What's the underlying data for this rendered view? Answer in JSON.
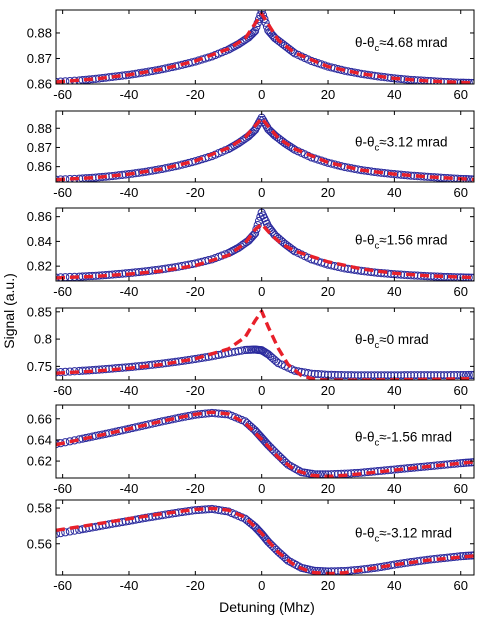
{
  "figure": {
    "xlabel": "Detuning (Mhz)",
    "ylabel": "Signal (a.u.)"
  },
  "colors": {
    "data": "#2b2b9e",
    "fit": "#e8202a",
    "axes": "#000000"
  },
  "chart_data": [
    {
      "type": "scatter",
      "annotation": {
        "prefix": "θ-θ",
        "sub": "c",
        "value": "≈4.68 mrad"
      },
      "xlim": [
        -62,
        64
      ],
      "ylim": [
        0.86,
        0.889
      ],
      "x_ticks": [
        -60,
        -40,
        -20,
        0,
        20,
        40,
        60
      ],
      "y_ticks": [
        0.86,
        0.87,
        0.88
      ],
      "y_tick_labels": [
        "0.86",
        "0.87",
        "0.88"
      ],
      "series": [
        {
          "role": "data",
          "style": "circles",
          "x": [
            -62,
            -55,
            -50,
            -45,
            -40,
            -35,
            -30,
            -25,
            -20,
            -15,
            -10,
            -7,
            -4,
            -2,
            0,
            2,
            4,
            7,
            10,
            15,
            20,
            25,
            30,
            35,
            40,
            45,
            50,
            55,
            60,
            64
          ],
          "y": [
            0.8608,
            0.8614,
            0.862,
            0.8628,
            0.8636,
            0.8646,
            0.8658,
            0.8672,
            0.8688,
            0.8708,
            0.8735,
            0.8756,
            0.8782,
            0.8808,
            0.8885,
            0.881,
            0.878,
            0.875,
            0.872,
            0.869,
            0.8668,
            0.8652,
            0.864,
            0.863,
            0.8622,
            0.8616,
            0.8612,
            0.8608,
            0.8605,
            0.8604
          ]
        },
        {
          "role": "fit",
          "style": "dashed",
          "x": [
            -62,
            -50,
            -40,
            -30,
            -20,
            -10,
            -5,
            0,
            5,
            10,
            20,
            30,
            40,
            50,
            64
          ],
          "y": [
            0.8608,
            0.862,
            0.8636,
            0.8658,
            0.869,
            0.8738,
            0.8778,
            0.8875,
            0.8772,
            0.8722,
            0.8668,
            0.864,
            0.8622,
            0.8612,
            0.8604
          ]
        }
      ]
    },
    {
      "type": "scatter",
      "annotation": {
        "prefix": "θ-θ",
        "sub": "c",
        "value": "≈3.12 mrad"
      },
      "xlim": [
        -62,
        64
      ],
      "ylim": [
        0.852,
        0.889
      ],
      "x_ticks": [
        -60,
        -40,
        -20,
        0,
        20,
        40,
        60
      ],
      "y_ticks": [
        0.86,
        0.87,
        0.88
      ],
      "y_tick_labels": [
        "0.86",
        "0.87",
        "0.88"
      ],
      "series": [
        {
          "role": "data",
          "style": "circles",
          "x": [
            -62,
            -55,
            -50,
            -45,
            -40,
            -35,
            -30,
            -25,
            -20,
            -15,
            -10,
            -7,
            -4,
            -2,
            0,
            2,
            4,
            7,
            10,
            15,
            20,
            25,
            30,
            35,
            40,
            45,
            50,
            55,
            60,
            64
          ],
          "y": [
            0.8532,
            0.8537,
            0.8543,
            0.8551,
            0.8561,
            0.8573,
            0.8588,
            0.8606,
            0.8628,
            0.8655,
            0.8692,
            0.8722,
            0.8758,
            0.8792,
            0.8855,
            0.8795,
            0.8762,
            0.8722,
            0.8688,
            0.8648,
            0.862,
            0.8598,
            0.8582,
            0.857,
            0.8561,
            0.8553,
            0.8547,
            0.8541,
            0.8536,
            0.8533
          ]
        },
        {
          "role": "fit",
          "style": "dashed",
          "x": [
            -62,
            -50,
            -40,
            -30,
            -20,
            -10,
            -5,
            0,
            5,
            10,
            20,
            30,
            40,
            50,
            64
          ],
          "y": [
            0.8532,
            0.8543,
            0.8561,
            0.8588,
            0.863,
            0.8698,
            0.8752,
            0.8852,
            0.8748,
            0.8692,
            0.8622,
            0.8582,
            0.8561,
            0.8547,
            0.8533
          ]
        }
      ]
    },
    {
      "type": "scatter",
      "annotation": {
        "prefix": "θ-θ",
        "sub": "c",
        "value": "≈1.56 mrad"
      },
      "xlim": [
        -62,
        64
      ],
      "ylim": [
        0.808,
        0.867
      ],
      "x_ticks": [
        -60,
        -40,
        -20,
        0,
        20,
        40,
        60
      ],
      "y_ticks": [
        0.82,
        0.84,
        0.86
      ],
      "y_tick_labels": [
        "0.82",
        "0.84",
        "0.86"
      ],
      "series": [
        {
          "role": "data",
          "style": "circles",
          "x": [
            -62,
            -55,
            -50,
            -45,
            -40,
            -35,
            -30,
            -25,
            -20,
            -15,
            -10,
            -7,
            -4,
            -2,
            0,
            2,
            4,
            7,
            10,
            15,
            20,
            25,
            30,
            35,
            40,
            45,
            50,
            55,
            60,
            64
          ],
          "y": [
            0.8108,
            0.8115,
            0.8122,
            0.8132,
            0.8144,
            0.8158,
            0.8175,
            0.8196,
            0.8222,
            0.8255,
            0.8305,
            0.8348,
            0.8405,
            0.8465,
            0.8632,
            0.852,
            0.845,
            0.838,
            0.832,
            0.8255,
            0.8212,
            0.8182,
            0.8162,
            0.8146,
            0.8135,
            0.8126,
            0.8119,
            0.8113,
            0.8109,
            0.8106
          ]
        },
        {
          "role": "fit",
          "style": "dashed",
          "x": [
            -62,
            -50,
            -40,
            -30,
            -20,
            -10,
            -5,
            -2,
            0,
            3,
            6,
            10,
            20,
            30,
            40,
            50,
            64
          ],
          "y": [
            0.8105,
            0.8118,
            0.8136,
            0.8162,
            0.8205,
            0.8288,
            0.8385,
            0.8495,
            0.854,
            0.845,
            0.838,
            0.8322,
            0.8235,
            0.8178,
            0.8142,
            0.8122,
            0.8108
          ]
        }
      ]
    },
    {
      "type": "scatter",
      "annotation": {
        "prefix": "θ-θ",
        "sub": "c",
        "value": "≈0 mrad"
      },
      "xlim": [
        -62,
        64
      ],
      "ylim": [
        0.725,
        0.857
      ],
      "x_ticks": [
        -60,
        -40,
        -20,
        0,
        20,
        40,
        60
      ],
      "y_ticks": [
        0.75,
        0.8,
        0.85
      ],
      "y_tick_labels": [
        "0.75",
        "0.8",
        "0.85"
      ],
      "series": [
        {
          "role": "data",
          "style": "circles",
          "x": [
            -62,
            -55,
            -50,
            -45,
            -40,
            -35,
            -30,
            -25,
            -20,
            -15,
            -10,
            -5,
            -2,
            0,
            2,
            5,
            10,
            15,
            20,
            25,
            30,
            35,
            40,
            45,
            50,
            55,
            60,
            64
          ],
          "y": [
            0.739,
            0.7415,
            0.7435,
            0.746,
            0.7485,
            0.7515,
            0.755,
            0.759,
            0.7635,
            0.7685,
            0.7745,
            0.78,
            0.7808,
            0.7795,
            0.772,
            0.756,
            0.742,
            0.7365,
            0.7345,
            0.7338,
            0.7335,
            0.7335,
            0.7336,
            0.7337,
            0.7338,
            0.7338,
            0.734,
            0.7342
          ]
        },
        {
          "role": "fit",
          "style": "dashed",
          "x": [
            -62,
            -50,
            -40,
            -30,
            -20,
            -10,
            -5,
            -2,
            0,
            2,
            5,
            8,
            12,
            16,
            20,
            30,
            40,
            50,
            64
          ],
          "y": [
            0.7375,
            0.7415,
            0.7465,
            0.7535,
            0.764,
            0.782,
            0.8035,
            0.8335,
            0.851,
            0.822,
            0.783,
            0.753,
            0.733,
            0.7262,
            0.7248,
            0.725,
            0.7255,
            0.7262,
            0.7275
          ]
        }
      ]
    },
    {
      "type": "scatter",
      "annotation": {
        "prefix": "θ-θ",
        "sub": "c",
        "value": "≈-1.56 mrad"
      },
      "xlim": [
        -62,
        64
      ],
      "ylim": [
        0.604,
        0.673
      ],
      "x_ticks": [
        -60,
        -40,
        -20,
        0,
        20,
        40,
        60
      ],
      "y_ticks": [
        0.62,
        0.64,
        0.66
      ],
      "y_tick_labels": [
        "0.62",
        "0.64",
        "0.66"
      ],
      "series": [
        {
          "role": "data",
          "style": "circles",
          "x": [
            -62,
            -55,
            -50,
            -45,
            -40,
            -35,
            -30,
            -25,
            -20,
            -15,
            -10,
            -5,
            -2,
            0,
            2,
            5,
            8,
            12,
            16,
            20,
            25,
            30,
            35,
            40,
            45,
            50,
            55,
            60,
            64
          ],
          "y": [
            0.636,
            0.6405,
            0.6438,
            0.647,
            0.6505,
            0.654,
            0.6575,
            0.6608,
            0.6638,
            0.6655,
            0.664,
            0.6575,
            0.649,
            0.642,
            0.635,
            0.6255,
            0.6165,
            0.6095,
            0.6075,
            0.6075,
            0.608,
            0.609,
            0.6105,
            0.612,
            0.6135,
            0.615,
            0.6165,
            0.618,
            0.619
          ]
        },
        {
          "role": "fit",
          "style": "dashed",
          "x": [
            -62,
            -50,
            -40,
            -30,
            -20,
            -15,
            -10,
            -5,
            0,
            5,
            10,
            15,
            20,
            25,
            30,
            40,
            50,
            64
          ],
          "y": [
            0.6355,
            0.6435,
            0.6505,
            0.6578,
            0.6642,
            0.6662,
            0.6645,
            0.656,
            0.6405,
            0.6235,
            0.6115,
            0.6065,
            0.6055,
            0.6065,
            0.608,
            0.6115,
            0.6148,
            0.6192
          ]
        }
      ]
    },
    {
      "type": "scatter",
      "annotation": {
        "prefix": "θ-θ",
        "sub": "c",
        "value": "≈-3.12 mrad"
      },
      "xlim": [
        -62,
        64
      ],
      "ylim": [
        0.5425,
        0.5845
      ],
      "x_ticks": [
        -60,
        -40,
        -20,
        0,
        20,
        40,
        60
      ],
      "y_ticks": [
        0.56,
        0.58
      ],
      "y_tick_labels": [
        "0.56",
        "0.58"
      ],
      "series": [
        {
          "role": "data",
          "style": "circles",
          "x": [
            -62,
            -55,
            -50,
            -45,
            -40,
            -35,
            -30,
            -25,
            -20,
            -15,
            -10,
            -5,
            -2,
            0,
            2,
            5,
            8,
            12,
            16,
            20,
            25,
            30,
            35,
            40,
            45,
            50,
            55,
            60,
            64
          ],
          "y": [
            0.5655,
            0.5678,
            0.5695,
            0.5712,
            0.5728,
            0.5745,
            0.576,
            0.5775,
            0.5788,
            0.5795,
            0.578,
            0.574,
            0.5695,
            0.5655,
            0.561,
            0.5555,
            0.5505,
            0.5465,
            0.5448,
            0.5445,
            0.5447,
            0.5455,
            0.5467,
            0.5483,
            0.5497,
            0.551,
            0.552,
            0.553,
            0.5535
          ]
        },
        {
          "role": "fit",
          "style": "dashed",
          "x": [
            -62,
            -50,
            -40,
            -30,
            -20,
            -15,
            -10,
            -5,
            0,
            5,
            10,
            15,
            20,
            25,
            30,
            40,
            50,
            64
          ],
          "y": [
            0.5675,
            0.571,
            0.574,
            0.5768,
            0.5792,
            0.5798,
            0.5788,
            0.5748,
            0.5658,
            0.5552,
            0.5478,
            0.544,
            0.5432,
            0.5438,
            0.5452,
            0.5482,
            0.5508,
            0.5532
          ]
        }
      ]
    }
  ]
}
